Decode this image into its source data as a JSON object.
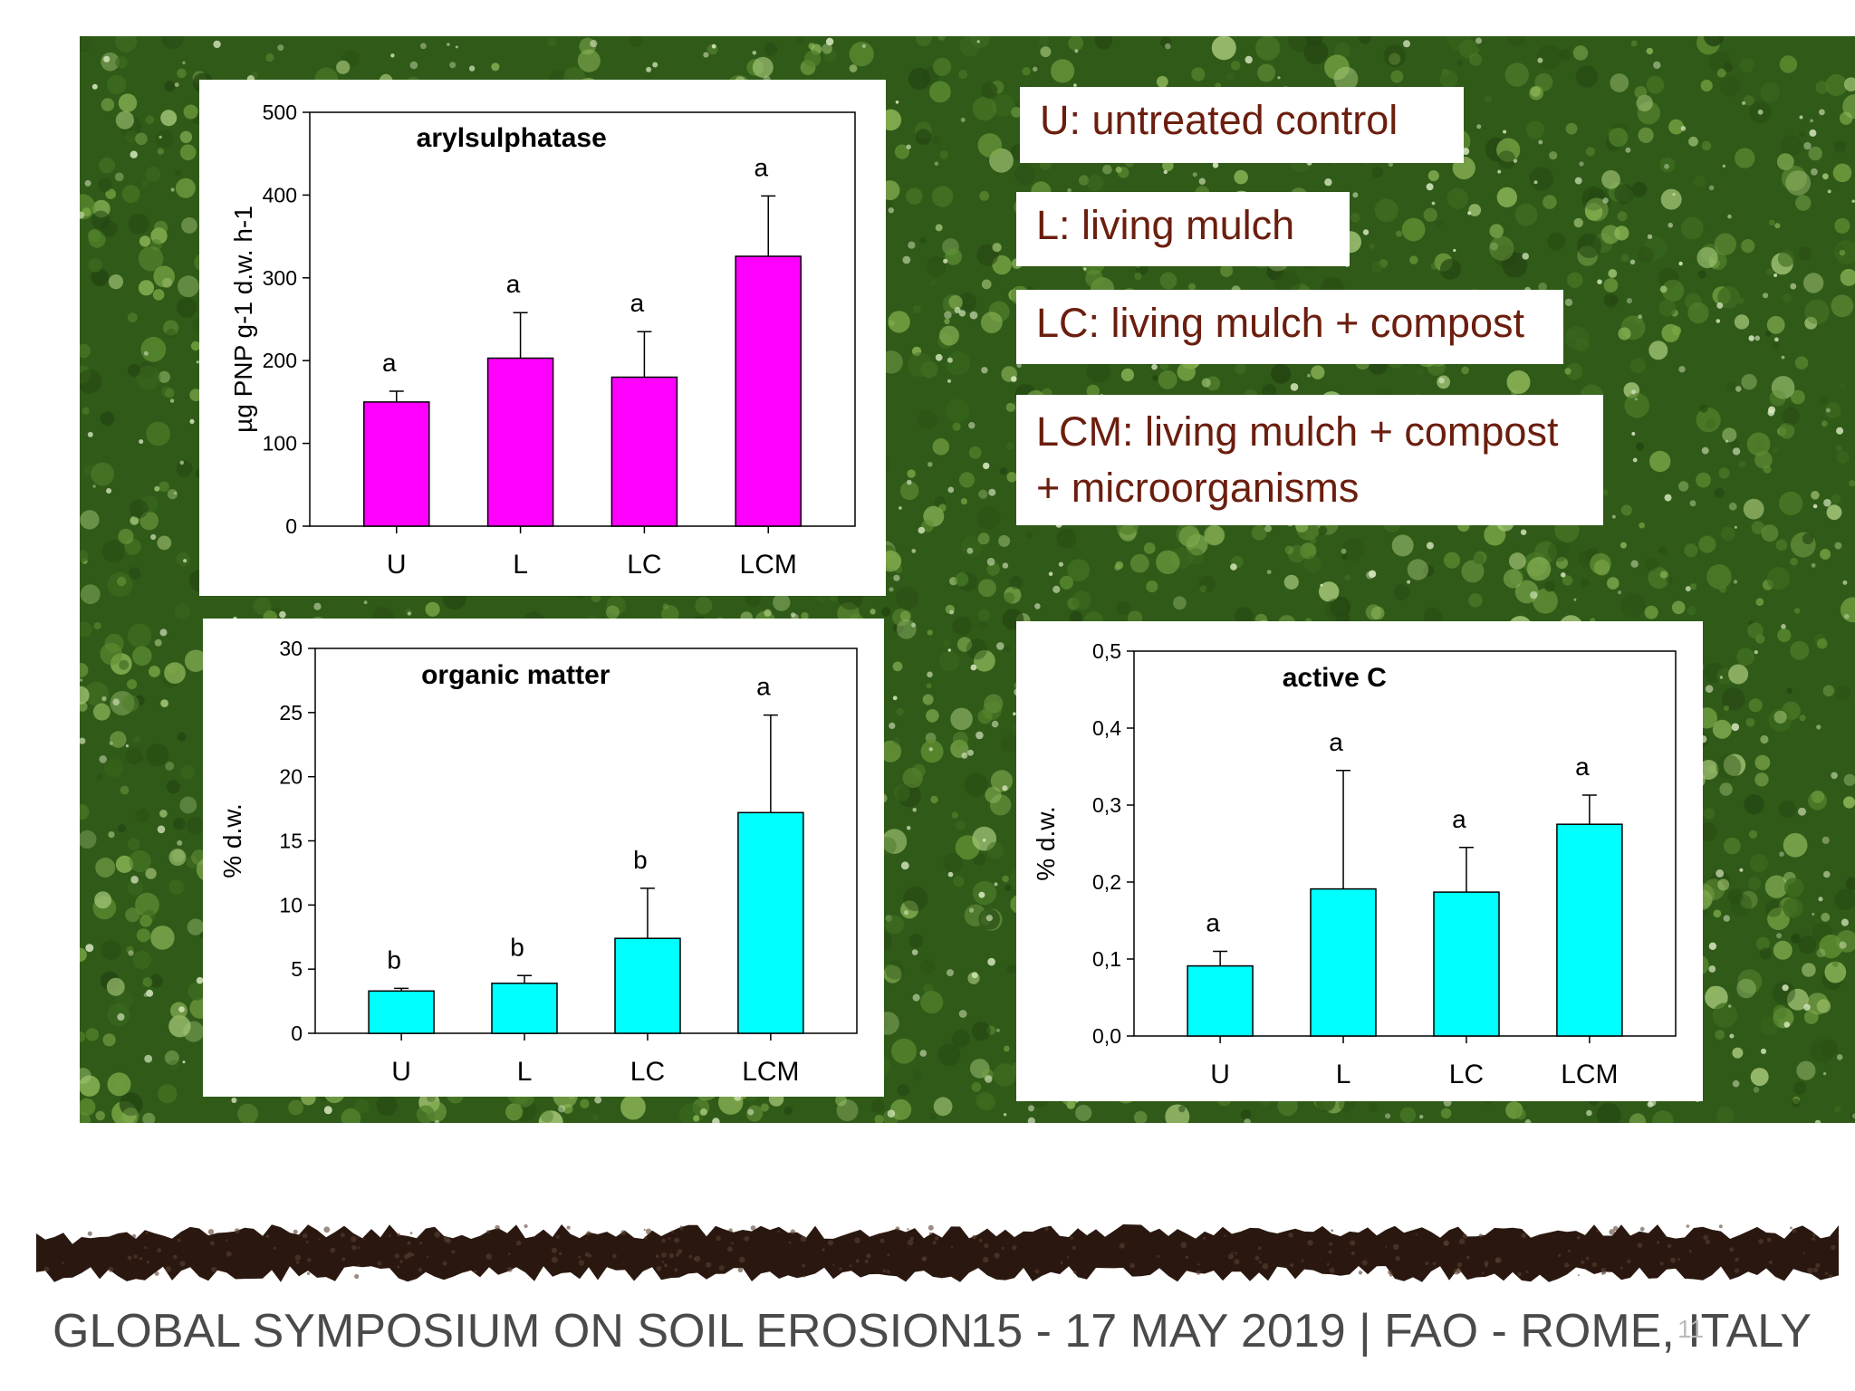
{
  "chart_data": [
    {
      "type": "bar",
      "title": "arylsulphatase",
      "ylabel": "µg PNP g-1 d.w. h-1",
      "xlabel": "",
      "categories": [
        "U",
        "L",
        "LC",
        "LCM"
      ],
      "values": [
        150,
        203,
        180,
        326
      ],
      "errors": [
        13,
        55,
        55,
        73
      ],
      "significance": [
        "a",
        "a",
        "a",
        "a"
      ],
      "ylim": [
        0,
        500
      ],
      "yticks": [
        "0",
        "100",
        "200",
        "300",
        "400",
        "500"
      ],
      "color": "#ff00ff"
    },
    {
      "type": "bar",
      "title": "organic matter",
      "ylabel": "% d.w.",
      "xlabel": "",
      "categories": [
        "U",
        "L",
        "LC",
        "LCM"
      ],
      "values": [
        3.3,
        3.9,
        7.4,
        17.2
      ],
      "errors": [
        0.2,
        0.6,
        3.9,
        7.6
      ],
      "significance": [
        "b",
        "b",
        "b",
        "a"
      ],
      "ylim": [
        0,
        30
      ],
      "yticks": [
        "0",
        "5",
        "10",
        "15",
        "20",
        "25",
        "30"
      ],
      "color": "#00ffff"
    },
    {
      "type": "bar",
      "title": "active C",
      "ylabel": "% d.w.",
      "xlabel": "",
      "categories": [
        "U",
        "L",
        "LC",
        "LCM"
      ],
      "values": [
        0.091,
        0.191,
        0.187,
        0.275
      ],
      "errors": [
        0.019,
        0.154,
        0.058,
        0.038
      ],
      "significance": [
        "a",
        "a",
        "a",
        "a"
      ],
      "ylim": [
        0,
        0.5
      ],
      "yticks": [
        "0,0",
        "0,1",
        "0,2",
        "0,3",
        "0,4",
        "0,5"
      ],
      "color": "#00ffff"
    }
  ],
  "legend": {
    "u": "U: untreated control",
    "l": "L: living mulch",
    "lc": "LC: living mulch + compost",
    "lcm_line1": "LCM: living mulch + compost",
    "lcm_line2": "+ microorganisms"
  },
  "footer": {
    "left": "GLOBAL SYMPOSIUM ON SOIL EROSION",
    "right": "15 - 17 MAY 2019 | FAO - ROME, ITALY",
    "page": "11"
  },
  "colors": {
    "grass_dark": "#2f5a18",
    "grass_light": "#6f9a3a",
    "soil": "#2a1810",
    "legend_text": "#6b1e0e"
  }
}
